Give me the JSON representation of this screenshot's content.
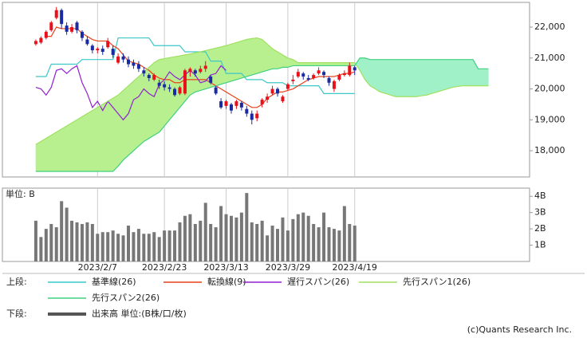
{
  "chart_data": [
    {
      "type": "ichimoku",
      "xlim": [
        -6.5,
        96
      ],
      "xticks": [
        {
          "value": 12,
          "label": "2023/2/7"
        },
        {
          "value": 25,
          "label": "2023/2/23"
        },
        {
          "value": 37,
          "label": "2023/3/13"
        },
        {
          "value": 49,
          "label": "2023/3/29"
        },
        {
          "value": 62,
          "label": "2023/4/19"
        }
      ],
      "ylim": [
        17150,
        22800
      ],
      "yticks": [
        {
          "value": 18000,
          "label": "18,000"
        },
        {
          "value": 19000,
          "label": "19,000"
        },
        {
          "value": 20000,
          "label": "20,000"
        },
        {
          "value": 21000,
          "label": "21,000"
        },
        {
          "value": 22000,
          "label": "22,000"
        }
      ],
      "up_color": "#e8101a",
      "down_color": "#1a2aa0",
      "cloud_colors": [
        "#b8f090",
        "#a0f0c8"
      ],
      "open": [
        21450,
        21500,
        21650,
        21900,
        22300,
        22550,
        22050,
        21850,
        22150,
        21850,
        21600,
        21400,
        21250,
        21300,
        21350,
        21300,
        20850,
        21050,
        20950,
        20850,
        20800,
        20600,
        20450,
        20300,
        20200,
        20150,
        20050,
        20000,
        19850,
        19850,
        20550,
        20600,
        20550,
        20650,
        20400,
        20050,
        19600,
        19450,
        19500,
        19450,
        19550,
        19350,
        19200,
        19050,
        19500,
        19650,
        19850,
        20000,
        19600,
        20000,
        20250,
        20400,
        20500,
        20350,
        20350,
        20500,
        20550,
        20350,
        20000,
        20300,
        20450,
        20450,
        20700
      ],
      "high": [
        21600,
        21700,
        21900,
        22200,
        22650,
        22600,
        22150,
        22100,
        22200,
        21900,
        21700,
        21450,
        21350,
        21400,
        21650,
        21400,
        21150,
        21150,
        21050,
        20950,
        20900,
        20700,
        20500,
        20500,
        20300,
        20250,
        20150,
        20050,
        20100,
        20650,
        20700,
        20650,
        20750,
        20900,
        20450,
        20100,
        19700,
        19650,
        19550,
        19650,
        19600,
        19450,
        19300,
        19300,
        19700,
        19850,
        20100,
        20050,
        19800,
        20200,
        20450,
        20650,
        20550,
        20450,
        20500,
        20700,
        20600,
        20400,
        20300,
        20500,
        20600,
        20850,
        20750
      ],
      "low": [
        21400,
        21450,
        21600,
        21850,
        22250,
        21950,
        21750,
        21800,
        21800,
        21550,
        21400,
        21150,
        21150,
        21100,
        21300,
        21000,
        20800,
        20850,
        20700,
        20650,
        20550,
        20400,
        20250,
        20250,
        20000,
        19950,
        19900,
        19750,
        19800,
        19800,
        20400,
        20400,
        20500,
        20550,
        20150,
        19800,
        19350,
        19350,
        19200,
        19350,
        19300,
        19100,
        18850,
        18950,
        19400,
        19550,
        19800,
        19750,
        19550,
        19950,
        20150,
        20350,
        20300,
        20250,
        20300,
        20450,
        20350,
        20100,
        19900,
        20250,
        20400,
        20400,
        20450
      ],
      "close": [
        21550,
        21650,
        21850,
        22150,
        22550,
        22100,
        21850,
        22000,
        21900,
        21650,
        21450,
        21250,
        21300,
        21200,
        21550,
        21100,
        21050,
        20950,
        20800,
        20750,
        20650,
        20500,
        20350,
        20450,
        20100,
        20050,
        20000,
        19800,
        20050,
        20600,
        20650,
        20500,
        20650,
        20750,
        20200,
        19850,
        19400,
        19600,
        19300,
        19600,
        19400,
        19200,
        19000,
        19200,
        19650,
        19750,
        20000,
        19850,
        19750,
        20150,
        20300,
        20550,
        20400,
        20300,
        20450,
        20600,
        20450,
        20200,
        20250,
        20450,
        20500,
        20750,
        20600
      ],
      "series": [
        {
          "name": "基準線(26)",
          "color": "#3cc8c8",
          "values": [
            20400,
            20400,
            20400,
            20800,
            20800,
            20800,
            20800,
            20800,
            20800,
            20950,
            20950,
            20950,
            20950,
            20950,
            20950,
            20950,
            21650,
            21650,
            21650,
            21650,
            21650,
            21650,
            21650,
            21400,
            21400,
            21400,
            21400,
            21400,
            21400,
            21200,
            21200,
            21200,
            21200,
            21200,
            20900,
            20900,
            20900,
            20500,
            20500,
            20500,
            20500,
            20300,
            20300,
            20300,
            20300,
            20200,
            20200,
            20200,
            20200,
            20100,
            20100,
            20100,
            20100,
            20100,
            20100,
            20100,
            19850,
            19850,
            19850,
            19850,
            19850,
            19850,
            19850
          ]
        },
        {
          "name": "転換線(9)",
          "color": "#e8401a",
          "values": [
            null,
            null,
            21700,
            21700,
            22000,
            21950,
            21950,
            21950,
            21950,
            21800,
            21700,
            21600,
            21550,
            21550,
            21550,
            21400,
            21300,
            21100,
            20900,
            20850,
            20800,
            20700,
            20600,
            20450,
            20350,
            20300,
            20300,
            20200,
            20200,
            20300,
            20300,
            20300,
            20300,
            20300,
            20200,
            20100,
            20000,
            19900,
            19800,
            19700,
            19600,
            19500,
            19400,
            19400,
            19500,
            19700,
            19800,
            19900,
            19900,
            19950,
            20000,
            20100,
            20200,
            20300,
            20350,
            20400,
            20400,
            20400,
            20400,
            20450,
            20500,
            20500,
            20550
          ]
        },
        {
          "name": "遅行スパン(26)",
          "color": "#9020d0",
          "values": [
            20050,
            20000,
            19800,
            20050,
            20600,
            20650,
            20500,
            20650,
            20750,
            20200,
            19850,
            19400,
            19600,
            19300,
            19600,
            19400,
            19200,
            19000,
            19200,
            19650,
            19750,
            20000,
            19850,
            19750,
            20150,
            20300,
            20550,
            20400,
            20300,
            20450,
            20600,
            20450,
            20200,
            20250,
            20450,
            20500,
            20750,
            20600
          ]
        },
        {
          "name": "先行スパン1(26)",
          "color": "#a0e060",
          "values": [
            18200,
            18300,
            18400,
            18500,
            18600,
            18700,
            18800,
            18900,
            19000,
            19100,
            19200,
            19300,
            19400,
            19500,
            19600,
            19700,
            19800,
            19950,
            20100,
            20250,
            20400,
            20550,
            20700,
            20850,
            20950,
            20980,
            21010,
            21040,
            21070,
            21100,
            21130,
            21170,
            21200,
            21240,
            21280,
            21320,
            21360,
            21400,
            21450,
            21500,
            21550,
            21600,
            21630,
            21650,
            21600,
            21450,
            21300,
            21200,
            21100,
            21000,
            20950,
            20850,
            20850,
            20850,
            20850,
            20850,
            20850,
            20850,
            20850,
            20850,
            20850,
            20850,
            20850,
            20600,
            20300,
            20100,
            20000,
            19900,
            19850,
            19800,
            19750,
            19750,
            19750,
            19750,
            19750,
            19780,
            19800,
            19850,
            19900,
            19950,
            20000,
            20050,
            20080,
            20100,
            20100,
            20100,
            20100,
            20100,
            20100
          ]
        },
        {
          "name": "先行スパン2(26)",
          "color": "#40d080",
          "values": [
            17330,
            17330,
            17330,
            17330,
            17330,
            17330,
            17330,
            17330,
            17330,
            17330,
            17330,
            17330,
            17330,
            17330,
            17330,
            17330,
            17500,
            17700,
            17850,
            18000,
            18150,
            18300,
            18400,
            18500,
            18600,
            18800,
            19000,
            19200,
            19400,
            19600,
            19800,
            19900,
            19950,
            20000,
            20050,
            20100,
            20150,
            20200,
            20250,
            20300,
            20350,
            20400,
            20450,
            20500,
            20550,
            20600,
            20650,
            20650,
            20700,
            20700,
            20750,
            20750,
            20750,
            20750,
            20750,
            20750,
            20750,
            20750,
            20750,
            20750,
            20750,
            20750,
            20750,
            21000,
            21000,
            20950,
            20950,
            20950,
            20950,
            20950,
            20950,
            20950,
            20950,
            20950,
            20950,
            20950,
            20950,
            20950,
            20950,
            20950,
            20950,
            20950,
            20950,
            20950,
            20950,
            20950,
            20650,
            20650,
            20650
          ]
        }
      ]
    },
    {
      "type": "bar",
      "y_label": "単位: B",
      "xlim": [
        -6.5,
        96
      ],
      "ylim": [
        0,
        4.5
      ],
      "yticks": [
        {
          "value": 1,
          "label": "1B"
        },
        {
          "value": 2,
          "label": "2B"
        },
        {
          "value": 3,
          "label": "3B"
        },
        {
          "value": 4,
          "label": "4B"
        }
      ],
      "series": [
        {
          "name": "出来高 単位:(B株/口/枚)",
          "color": "#777777",
          "values": [
            2.5,
            1.5,
            2.0,
            2.3,
            2.1,
            3.7,
            3.3,
            2.5,
            2.4,
            2.3,
            2.4,
            2.3,
            1.7,
            1.8,
            1.8,
            1.9,
            1.7,
            1.6,
            2.2,
            1.8,
            2.0,
            1.7,
            1.7,
            1.8,
            1.5,
            1.9,
            1.9,
            1.9,
            2.4,
            2.8,
            2.9,
            2.3,
            2.5,
            3.6,
            2.3,
            2.1,
            3.4,
            2.9,
            2.8,
            2.7,
            3.0,
            4.2,
            2.4,
            2.3,
            2.5,
            1.6,
            2.2,
            2.0,
            2.7,
            1.9,
            2.6,
            2.9,
            3.0,
            2.8,
            2.3,
            2.1,
            3.0,
            2.1,
            2.0,
            1.9,
            3.4,
            2.3,
            2.2
          ]
        }
      ]
    }
  ],
  "legend": {
    "upper": "上段:",
    "lower": "下段:"
  },
  "footer": "(c)Quants Research Inc."
}
